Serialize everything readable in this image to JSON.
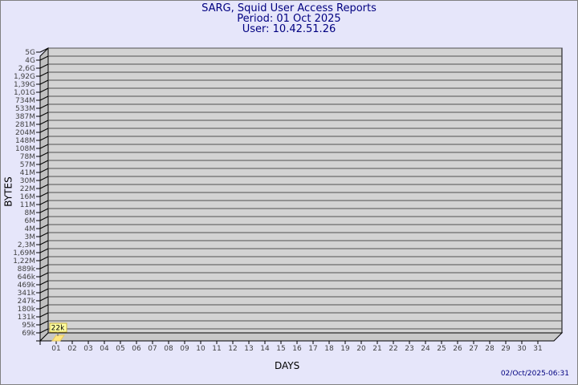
{
  "title": "SARG, Squid User Access Reports",
  "period": "Period: 01 Oct 2025",
  "user": "User: 10.42.51.26",
  "footer_timestamp": "02/Oct/2025-06:31",
  "colors": {
    "background": "#e6e6fa",
    "title": "#000080",
    "plot": "#d3d3d3",
    "bar": "#ffe680"
  },
  "chart_data": {
    "type": "bar",
    "style": "3d",
    "xlabel": "DAYS",
    "ylabel": "BYTES",
    "yscale": "log",
    "grid": true,
    "categories": [
      "01",
      "02",
      "03",
      "04",
      "05",
      "06",
      "07",
      "08",
      "09",
      "10",
      "11",
      "12",
      "13",
      "14",
      "15",
      "16",
      "17",
      "18",
      "19",
      "20",
      "21",
      "22",
      "23",
      "24",
      "25",
      "26",
      "27",
      "28",
      "29",
      "30",
      "31"
    ],
    "y_tick_labels": [
      "5G",
      "4G",
      "2,6G",
      "1,92G",
      "1,39G",
      "1,01G",
      "734M",
      "533M",
      "387M",
      "281M",
      "204M",
      "148M",
      "108M",
      "78M",
      "57M",
      "41M",
      "30M",
      "22M",
      "16M",
      "11M",
      "8M",
      "6M",
      "4M",
      "3M",
      "2,3M",
      "1,69M",
      "1,22M",
      "889k",
      "646k",
      "469k",
      "341k",
      "247k",
      "180k",
      "131k",
      "95k",
      "69k"
    ],
    "series": [
      {
        "values": [
          22000,
          null,
          null,
          null,
          null,
          null,
          null,
          null,
          null,
          null,
          null,
          null,
          null,
          null,
          null,
          null,
          null,
          null,
          null,
          null,
          null,
          null,
          null,
          null,
          null,
          null,
          null,
          null,
          null,
          null,
          null
        ]
      }
    ],
    "data_labels": [
      "22k"
    ]
  }
}
